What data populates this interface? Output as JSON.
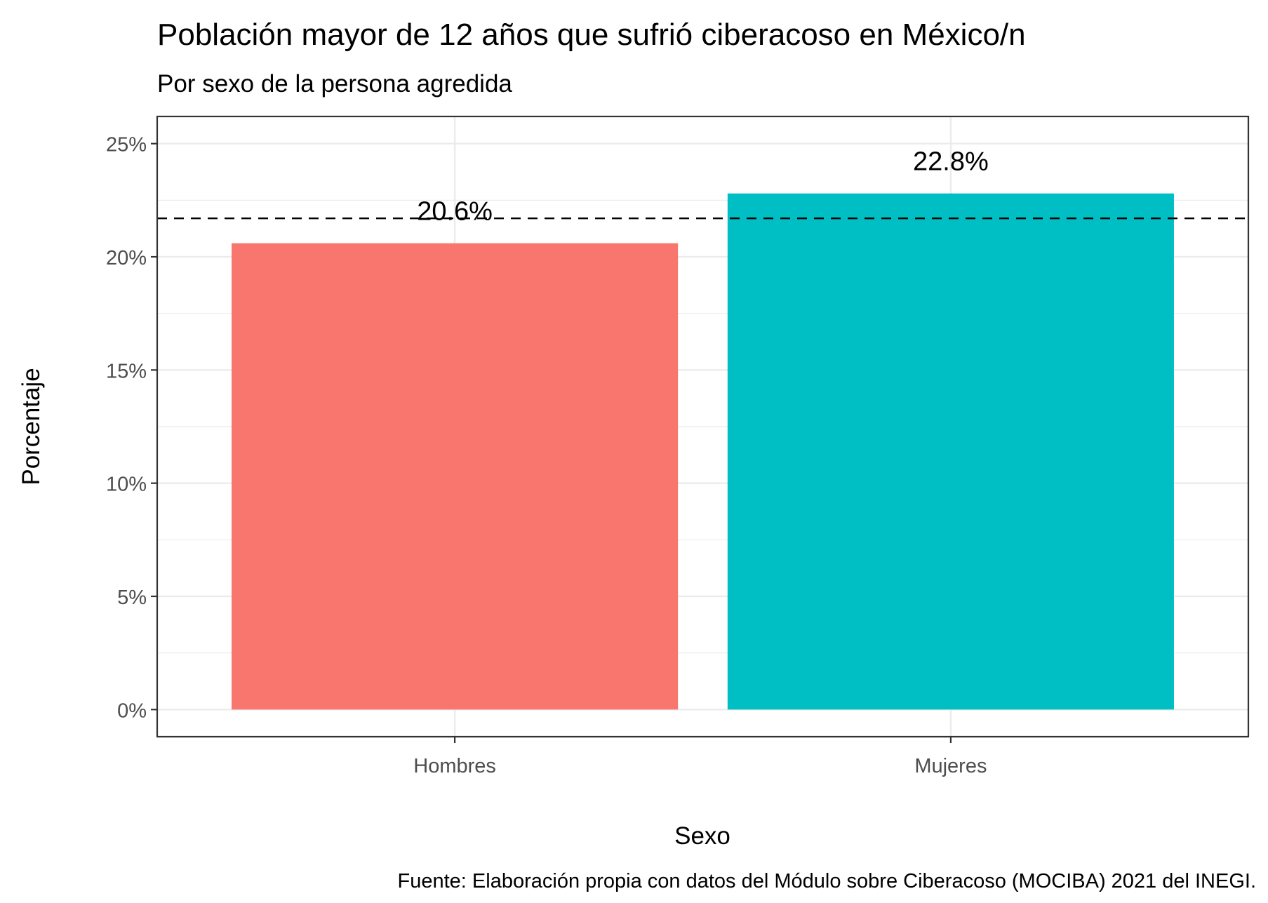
{
  "chart_data": {
    "type": "bar",
    "title": "Población mayor de 12 años que sufrió ciberacoso en México/n",
    "subtitle": "Por sexo de la persona agredida",
    "xlabel": "Sexo",
    "ylabel": "Porcentaje",
    "caption": "Fuente: Elaboración propia con datos del Módulo sobre Ciberacoso (MOCIBA) 2021 del INEGI.",
    "categories": [
      "Hombres",
      "Mujeres"
    ],
    "values": [
      20.6,
      22.8
    ],
    "value_labels": [
      "20.6%",
      "22.8%"
    ],
    "colors": [
      "#F8766D",
      "#00BFC4"
    ],
    "reference_line": {
      "y": 21.7,
      "style": "dashed",
      "color": "#000000"
    },
    "ylim": [
      -1.2,
      26.2
    ],
    "yticks": [
      0,
      5,
      10,
      15,
      20,
      25
    ],
    "ytick_labels": [
      "0%",
      "5%",
      "10%",
      "15%",
      "20%",
      "25%"
    ],
    "grid": true,
    "legend": "none"
  }
}
